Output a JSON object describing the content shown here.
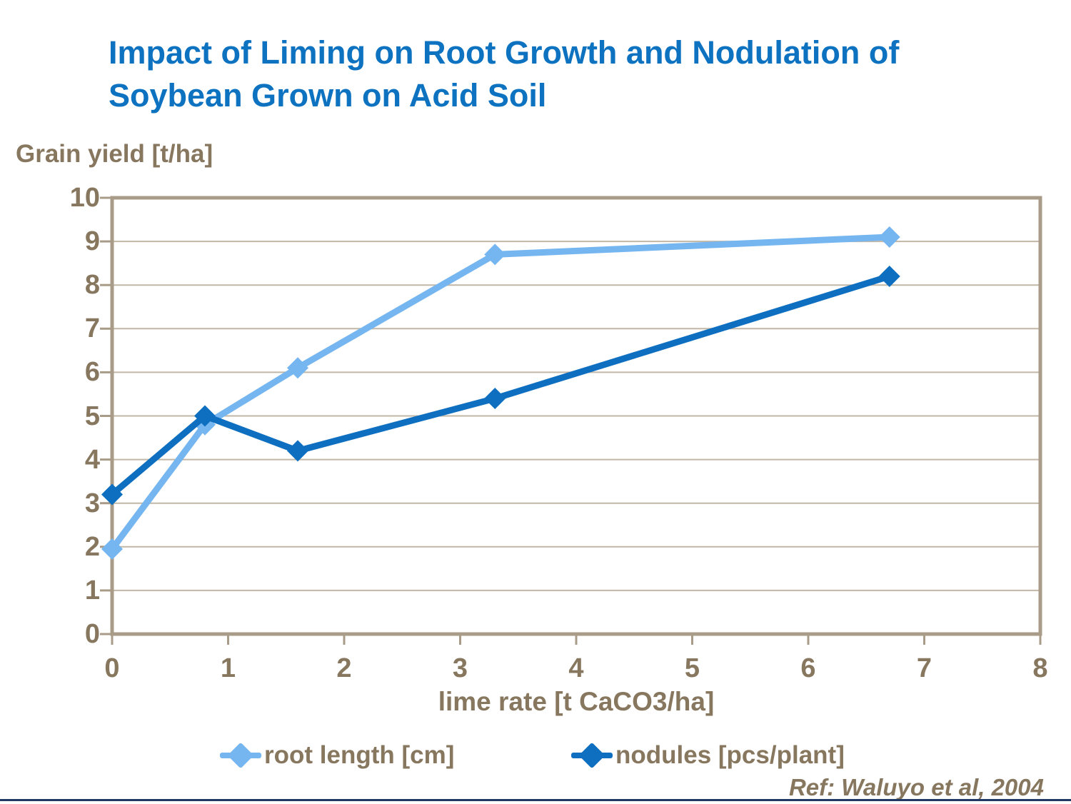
{
  "slide": {
    "title_line1": "Impact of Liming on Root Growth and Nodulation of",
    "title_line2": "Soybean Grown on Acid Soil",
    "reference": "Ref: Waluyo et al, 2004"
  },
  "chart_data": {
    "type": "line",
    "title": "Impact of Liming on Root Growth and Nodulation of Soybean Grown on Acid Soil",
    "ylabel": "Grain yield [t/ha]",
    "xlabel": "lime rate [t CaCO3/ha]",
    "x": [
      0,
      0.8,
      1.6,
      3.3,
      6.7
    ],
    "series": [
      {
        "name": "root length [cm]",
        "color": "#76B6F0",
        "values": [
          1.95,
          4.8,
          6.1,
          8.7,
          9.1
        ]
      },
      {
        "name": "nodules [pcs/plant]",
        "color": "#0E6FC0",
        "values": [
          3.2,
          5.0,
          4.2,
          5.4,
          8.2
        ]
      }
    ],
    "xlim": [
      0,
      8
    ],
    "ylim": [
      0,
      10
    ],
    "x_ticks": [
      0,
      1,
      2,
      3,
      4,
      5,
      6,
      7,
      8
    ],
    "y_ticks": [
      0,
      1,
      2,
      3,
      4,
      5,
      6,
      7,
      8,
      9,
      10
    ],
    "grid": "horizontal",
    "legend_position": "bottom",
    "marker": "diamond"
  },
  "colors": {
    "title_blue": "#0D72C0",
    "text_brown": "#87775F",
    "gridline_tan": "#C2B7A6",
    "plot_border_tan": "#A89C88",
    "footer_bar_navy": "#1F3864"
  }
}
